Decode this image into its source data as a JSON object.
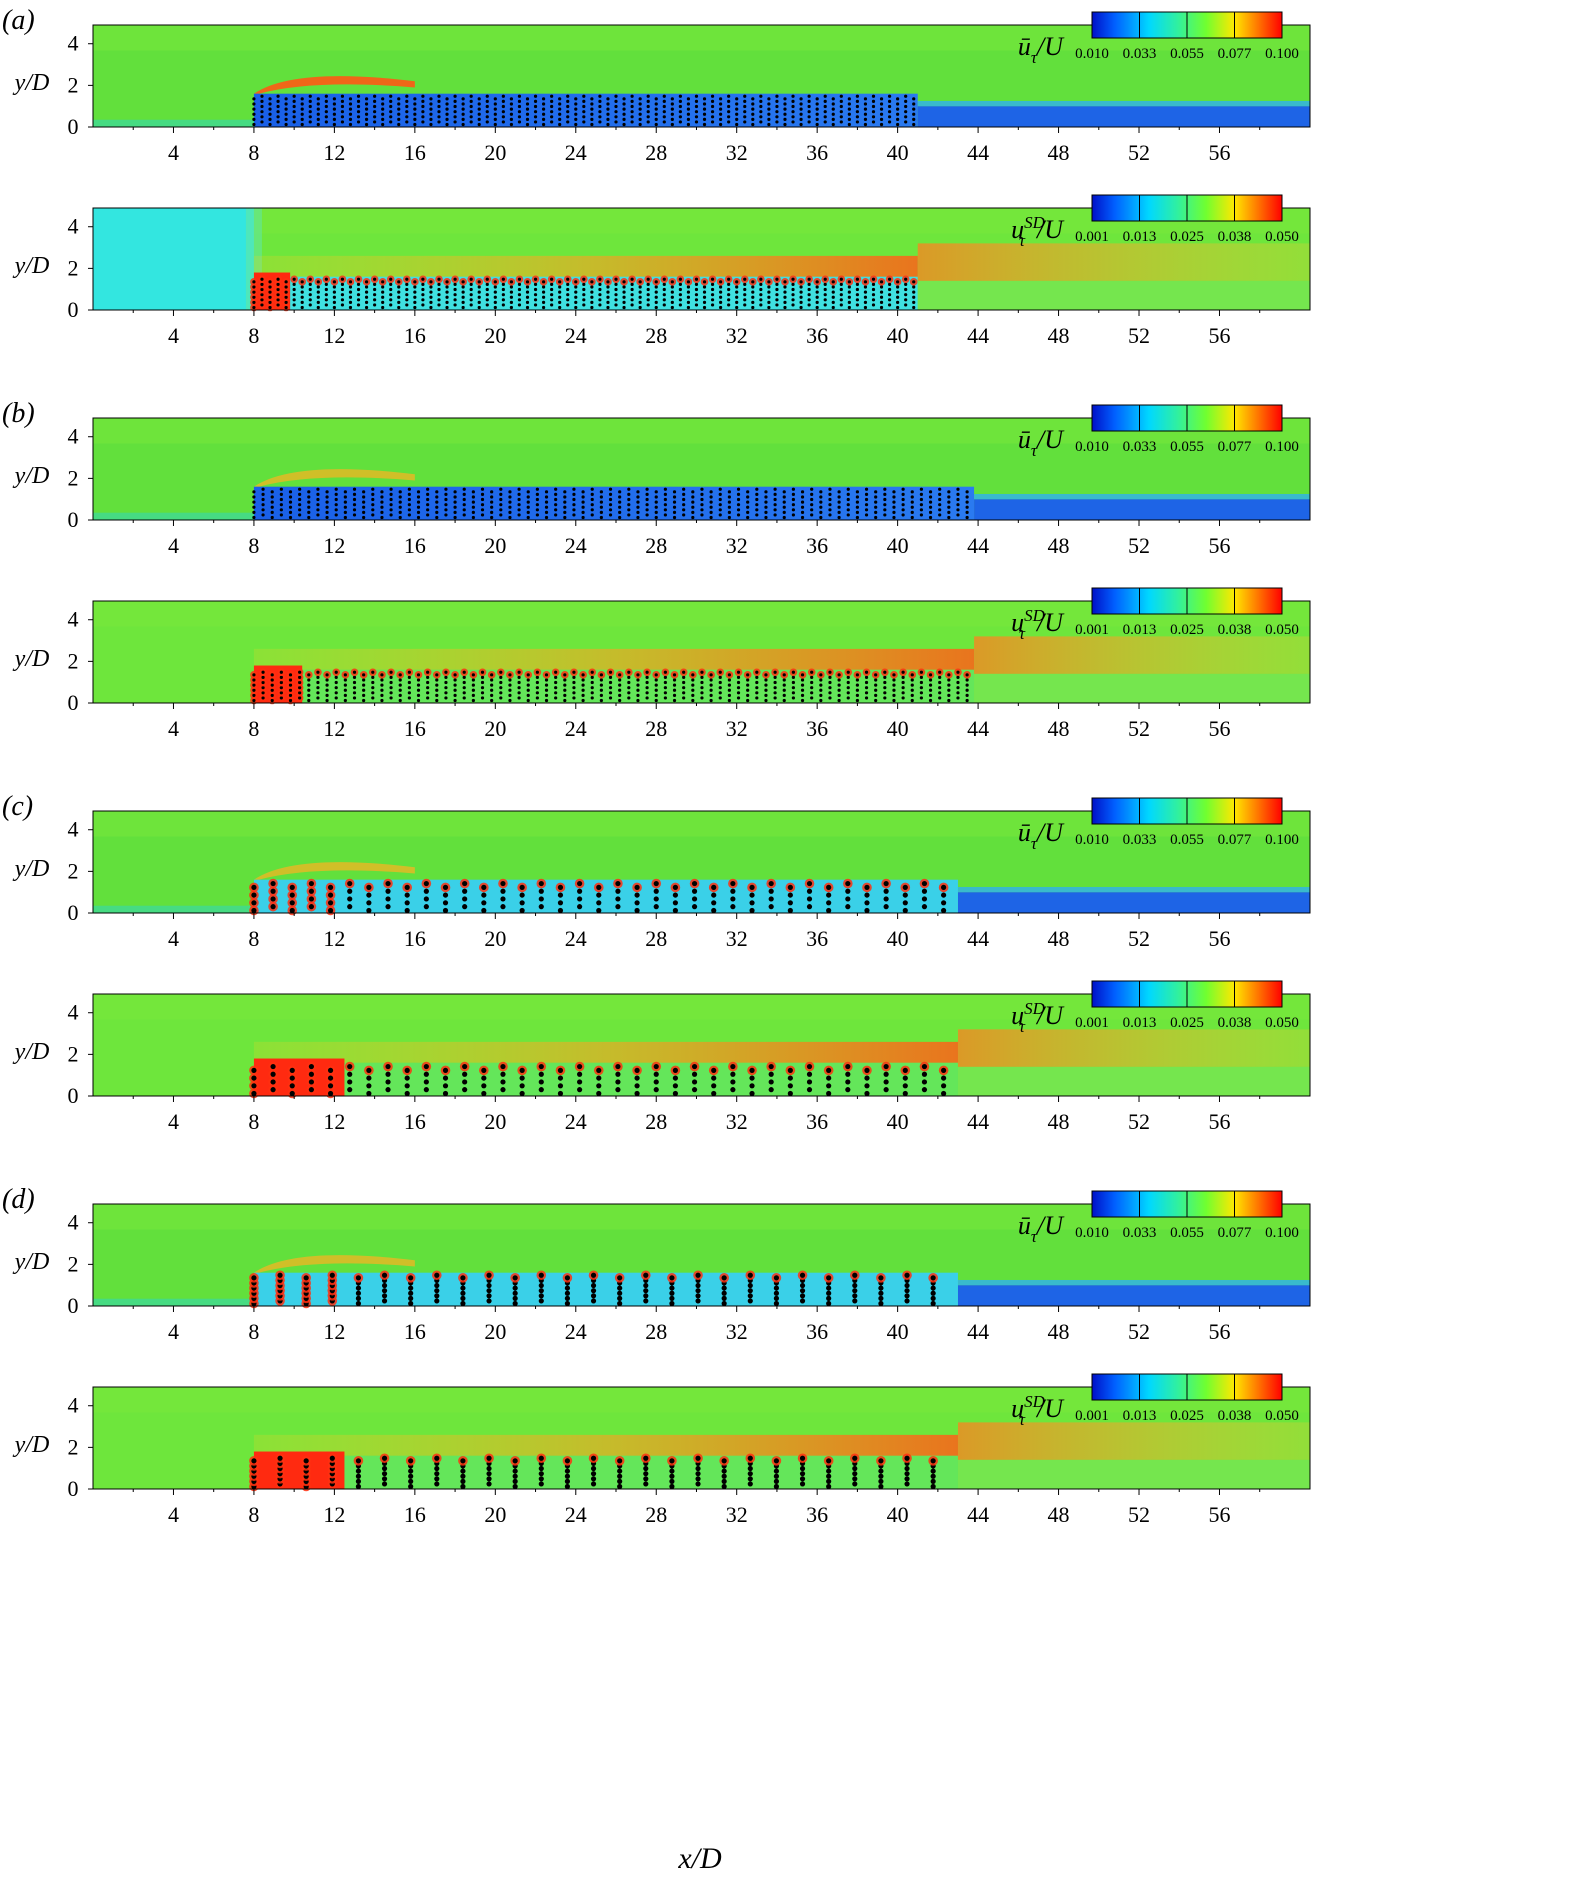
{
  "x_axis": {
    "label": "x/D",
    "ticks": [
      4,
      8,
      12,
      16,
      20,
      24,
      28,
      32,
      36,
      40,
      44,
      48,
      52,
      56
    ],
    "range": [
      0,
      60.5
    ]
  },
  "y_axis": {
    "label": "y/D",
    "ticks": [
      0,
      2,
      4
    ],
    "range": [
      0,
      4.9
    ]
  },
  "colormap": "jet (blue → cyan → green → yellow → red)",
  "colors": {
    "free_stream": "#5fe03a",
    "canopy_low": "#1f6fe0",
    "shear_high": "#ff2a10",
    "cylinder": "#000000"
  },
  "legends": {
    "mean": {
      "label_main": "ū",
      "label_sub": "τ",
      "label_tail": "/U",
      "ticks": [
        "0.010",
        "0.033",
        "0.055",
        "0.077",
        "0.100"
      ]
    },
    "sd": {
      "label_main": "u",
      "label_sub": "τ",
      "label_sup": "SD",
      "label_tail": "/U",
      "ticks": [
        "0.001",
        "0.013",
        "0.025",
        "0.038",
        "0.050"
      ]
    }
  },
  "cases": [
    {
      "label": "(a)",
      "patch_start": 8,
      "patch_end": 41,
      "top_y": 1.6,
      "cols_per_D": 2.5,
      "rows": 6,
      "dense_end": 9.8
    },
    {
      "label": "(b)",
      "patch_start": 8,
      "patch_end": 43.8,
      "top_y": 1.6,
      "cols_per_D": 2.2,
      "rows": 6,
      "dense_end": 10.4
    },
    {
      "label": "(c)",
      "patch_start": 8,
      "patch_end": 43,
      "top_y": 1.6,
      "cols_per_D": 1.05,
      "rows": 4,
      "dense_end": 12.5
    },
    {
      "label": "(d)",
      "patch_start": 8,
      "patch_end": 43,
      "top_y": 1.6,
      "cols_per_D": 0.77,
      "rows": 6,
      "dense_end": 12.5
    }
  ],
  "chart_data": {
    "type": "heatmap",
    "x_label": "x/D",
    "y_label": "y/D",
    "xlim": [
      0,
      60.5
    ],
    "ylim": [
      0,
      4.9
    ],
    "panels": [
      {
        "case": "(a)",
        "quantity": "mean",
        "canopy_end_x": 41,
        "colorbar_range": [
          0.01,
          0.1
        ]
      },
      {
        "case": "(a)",
        "quantity": "sd",
        "canopy_end_x": 41,
        "colorbar_range": [
          0.001,
          0.05
        ]
      },
      {
        "case": "(b)",
        "quantity": "mean",
        "canopy_end_x": 43.8,
        "colorbar_range": [
          0.01,
          0.1
        ]
      },
      {
        "case": "(b)",
        "quantity": "sd",
        "canopy_end_x": 43.8,
        "colorbar_range": [
          0.001,
          0.05
        ]
      },
      {
        "case": "(c)",
        "quantity": "mean",
        "canopy_end_x": 43,
        "colorbar_range": [
          0.01,
          0.1
        ]
      },
      {
        "case": "(c)",
        "quantity": "sd",
        "canopy_end_x": 43,
        "colorbar_range": [
          0.001,
          0.05
        ]
      },
      {
        "case": "(d)",
        "quantity": "mean",
        "canopy_end_x": 43,
        "colorbar_range": [
          0.01,
          0.1
        ]
      },
      {
        "case": "(d)",
        "quantity": "sd",
        "canopy_end_x": 43,
        "colorbar_range": [
          0.001,
          0.05
        ]
      }
    ]
  }
}
